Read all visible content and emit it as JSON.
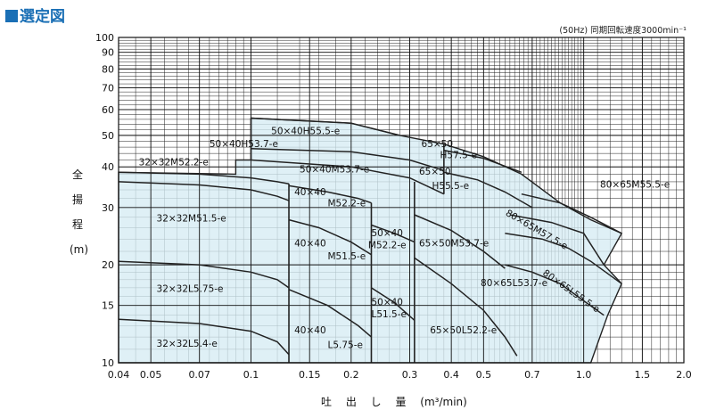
{
  "header": {
    "title": "選定図",
    "note": "(50Hz) 同期回転速度3000min⁻¹"
  },
  "axes": {
    "xlabel": "吐 出 し 量",
    "xunit": "(m³/min)",
    "ylabel_chars": [
      "全",
      "揚",
      "程",
      "(m)"
    ]
  },
  "chart_data": {
    "type": "area",
    "xscale": "log",
    "yscale": "log",
    "xlim": [
      0.04,
      2.0
    ],
    "ylim": [
      10,
      100
    ],
    "grid": true,
    "x_tick_labels": [
      "0.04",
      "0.05",
      "0.07",
      "0.1",
      "0.15",
      "0.2",
      "0.3",
      "0.4",
      "0.5",
      "0.7",
      "1.0",
      "1.5",
      "2.0"
    ],
    "x_tick_values": [
      0.04,
      0.05,
      0.07,
      0.1,
      0.15,
      0.2,
      0.3,
      0.4,
      0.5,
      0.7,
      1.0,
      1.5,
      2.0
    ],
    "y_tick_labels": [
      "10",
      "15",
      "20",
      "30",
      "40",
      "50",
      "60",
      "70",
      "80",
      "90",
      "100"
    ],
    "y_tick_values": [
      10,
      15,
      20,
      30,
      40,
      50,
      60,
      70,
      80,
      90,
      100
    ],
    "fill_color": "#d6ecf3",
    "line_color": "#222222",
    "envelope": [
      [
        0.04,
        10
      ],
      [
        0.04,
        38.5
      ],
      [
        0.09,
        38
      ],
      [
        0.09,
        42
      ],
      [
        0.1,
        42
      ],
      [
        0.1,
        56.5
      ],
      [
        0.2,
        54.5
      ],
      [
        0.28,
        50
      ],
      [
        0.38,
        47
      ],
      [
        0.5,
        43
      ],
      [
        0.65,
        38
      ],
      [
        0.85,
        31
      ],
      [
        1.05,
        27.5
      ],
      [
        1.3,
        25
      ],
      [
        1.15,
        20
      ],
      [
        1.3,
        17.5
      ],
      [
        1.18,
        14
      ],
      [
        1.05,
        10
      ]
    ],
    "curves": [
      {
        "name": "32×32L5.4-e",
        "points": [
          [
            0.04,
            13.6
          ],
          [
            0.07,
            13.2
          ],
          [
            0.1,
            12.5
          ],
          [
            0.12,
            11.6
          ],
          [
            0.13,
            10.6
          ]
        ]
      },
      {
        "name": "32×32L5.75-e",
        "points": [
          [
            0.04,
            20.5
          ],
          [
            0.07,
            20.0
          ],
          [
            0.1,
            19.0
          ],
          [
            0.12,
            18.0
          ],
          [
            0.13,
            17.0
          ]
        ]
      },
      {
        "name": "32×32M51.5-e",
        "points": [
          [
            0.04,
            36.0
          ],
          [
            0.07,
            35.2
          ],
          [
            0.1,
            34.0
          ],
          [
            0.12,
            32.5
          ],
          [
            0.13,
            31.5
          ]
        ]
      },
      {
        "name": "32×32M52.2-e",
        "points": [
          [
            0.04,
            38.5
          ],
          [
            0.07,
            38.0
          ],
          [
            0.1,
            37.0
          ],
          [
            0.12,
            36.0
          ],
          [
            0.13,
            35.5
          ]
        ]
      },
      {
        "name": "40×40L5.75-e",
        "points": [
          [
            0.13,
            16.8
          ],
          [
            0.17,
            15.0
          ],
          [
            0.21,
            13.0
          ],
          [
            0.23,
            12.0
          ]
        ]
      },
      {
        "name": "40×40M51.5-e",
        "points": [
          [
            0.13,
            27.5
          ],
          [
            0.16,
            26.0
          ],
          [
            0.2,
            23.5
          ],
          [
            0.23,
            21.5
          ]
        ]
      },
      {
        "name": "40×40M52.2-e",
        "points": [
          [
            0.13,
            35.0
          ],
          [
            0.17,
            33.5
          ],
          [
            0.21,
            32.0
          ],
          [
            0.23,
            31.0
          ]
        ]
      },
      {
        "name": "50×40L51.5-e",
        "points": [
          [
            0.23,
            17.0
          ],
          [
            0.27,
            15.3
          ],
          [
            0.31,
            13.5
          ]
        ]
      },
      {
        "name": "50×40M52.2-e",
        "points": [
          [
            0.23,
            26.5
          ],
          [
            0.27,
            25.0
          ],
          [
            0.31,
            23.5
          ]
        ]
      },
      {
        "name": "50×40M53.7-e",
        "points": [
          [
            0.1,
            42.0
          ],
          [
            0.2,
            40.0
          ],
          [
            0.3,
            37.0
          ],
          [
            0.38,
            33.0
          ]
        ]
      },
      {
        "name": "50×40H53.7-e",
        "points": [
          [
            0.1,
            45.5
          ],
          [
            0.2,
            44.5
          ],
          [
            0.3,
            42.0
          ],
          [
            0.38,
            39.0
          ]
        ]
      },
      {
        "name": "50×40H55.5-e",
        "points": [
          [
            0.1,
            56.5
          ],
          [
            0.2,
            54.5
          ],
          [
            0.28,
            50.0
          ]
        ]
      },
      {
        "name": "65×50L52.2-e",
        "points": [
          [
            0.31,
            21.0
          ],
          [
            0.4,
            17.5
          ],
          [
            0.5,
            14.5
          ],
          [
            0.58,
            12.0
          ],
          [
            0.63,
            10.5
          ]
        ]
      },
      {
        "name": "65×50M53.7-e",
        "points": [
          [
            0.31,
            28.5
          ],
          [
            0.4,
            25.5
          ],
          [
            0.5,
            22.0
          ],
          [
            0.58,
            19.5
          ]
        ]
      },
      {
        "name": "65×50H55.5-e",
        "points": [
          [
            0.38,
            38.5
          ],
          [
            0.48,
            36.5
          ],
          [
            0.58,
            33.5
          ],
          [
            0.7,
            30.0
          ]
        ]
      },
      {
        "name": "65×50H57.5-e",
        "points": [
          [
            0.38,
            45.0
          ],
          [
            0.5,
            42.5
          ],
          [
            0.65,
            38.5
          ]
        ]
      },
      {
        "name": "80×65L53.7-e",
        "points": [
          [
            0.58,
            20.0
          ],
          [
            0.7,
            19.0
          ],
          [
            0.85,
            17.5
          ],
          [
            1.0,
            15.5
          ],
          [
            1.15,
            14.0
          ]
        ]
      },
      {
        "name": "80×65L55.5-e",
        "points": [
          [
            0.58,
            25.0
          ],
          [
            0.75,
            24.0
          ],
          [
            0.9,
            22.5
          ],
          [
            1.05,
            20.5
          ],
          [
            1.3,
            17.5
          ]
        ]
      },
      {
        "name": "80×65M55.5-e",
        "points": [
          [
            0.6,
            28.5
          ],
          [
            0.8,
            27.0
          ],
          [
            1.0,
            25.0
          ],
          [
            1.15,
            20.0
          ]
        ]
      },
      {
        "name": "80×65M57.5-e",
        "points": [
          [
            0.65,
            33.0
          ],
          [
            0.85,
            31.0
          ],
          [
            1.05,
            28.0
          ],
          [
            1.3,
            25.0
          ]
        ]
      }
    ],
    "dividers": [
      {
        "x": 0.1,
        "y": [
          42,
          56.5
        ]
      },
      {
        "x": 0.13,
        "y": [
          10,
          35.5
        ]
      },
      {
        "x": 0.23,
        "y": [
          10,
          31.0
        ]
      },
      {
        "x": 0.31,
        "y": [
          10,
          36.0
        ]
      },
      {
        "x": 0.38,
        "y": [
          33,
          47.0
        ]
      }
    ],
    "labels": [
      {
        "text": "32×32L5.4-e",
        "x": 0.052,
        "y": 11.2
      },
      {
        "text": "32×32L5.75-e",
        "x": 0.052,
        "y": 16.5
      },
      {
        "text": "32×32M51.5-e",
        "x": 0.052,
        "y": 27.2
      },
      {
        "text": "32×32M52.2-e",
        "x": 0.046,
        "y": 40.5
      },
      {
        "text": "40×40",
        "x": 0.135,
        "y": 12.3
      },
      {
        "text": "L5.75-e",
        "x": 0.17,
        "y": 11.1
      },
      {
        "text": "40×40",
        "x": 0.135,
        "y": 22.8
      },
      {
        "text": "M51.5-e",
        "x": 0.17,
        "y": 20.8
      },
      {
        "text": "40×40",
        "x": 0.135,
        "y": 32.7
      },
      {
        "text": "M52.2-e",
        "x": 0.17,
        "y": 30.3
      },
      {
        "text": "50×40",
        "x": 0.23,
        "y": 24.5
      },
      {
        "text": "M52.2-e",
        "x": 0.225,
        "y": 22.5
      },
      {
        "text": "50×40",
        "x": 0.23,
        "y": 15.0
      },
      {
        "text": "L51.5-e",
        "x": 0.23,
        "y": 13.8
      },
      {
        "text": "50×40M53.7-e",
        "x": 0.14,
        "y": 38.5
      },
      {
        "text": "50×40H53.7-e",
        "x": 0.075,
        "y": 46.0
      },
      {
        "text": "50×40H55.5-e",
        "x": 0.115,
        "y": 50.5
      },
      {
        "text": "65×50L52.2-e",
        "x": 0.345,
        "y": 12.3
      },
      {
        "text": "65×50M53.7-e",
        "x": 0.32,
        "y": 22.8
      },
      {
        "text": "65×50",
        "x": 0.32,
        "y": 37.8
      },
      {
        "text": "H55.5-e",
        "x": 0.35,
        "y": 34.2
      },
      {
        "text": "65×50",
        "x": 0.325,
        "y": 46.0
      },
      {
        "text": "H57.5-e",
        "x": 0.37,
        "y": 42.5
      },
      {
        "text": "80×65L53.7-e",
        "x": 0.49,
        "y": 17.2
      },
      {
        "text": "80×65L55.5-e",
        "x": 0.75,
        "y": 18.7,
        "rotate": 35
      },
      {
        "text": "80×65M57.5-e",
        "x": 0.58,
        "y": 28.5,
        "rotate": 30
      },
      {
        "text": "80×65M55.5-e",
        "x": 1.12,
        "y": 34.5
      }
    ]
  }
}
